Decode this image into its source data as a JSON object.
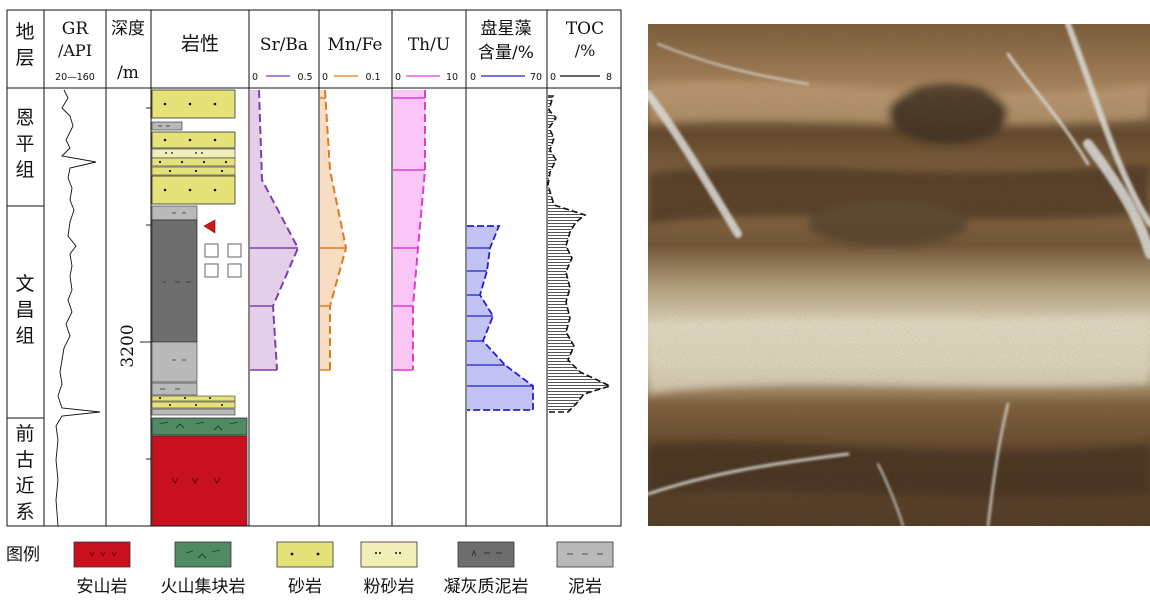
{
  "columns": {
    "stratum": "地层",
    "gr_title": "GR",
    "gr_unit": "/API",
    "gr_range": "20—160",
    "depth_title": "深度",
    "depth_unit": "/m",
    "lith_title": "岩性",
    "srba_title": "Sr/Ba",
    "srba_min": "0",
    "srba_max": "0.5",
    "mnfe_title": "Mn/Fe",
    "mnfe_min": "0",
    "mnfe_max": "0.1",
    "thu_title": "Th/U",
    "thu_min": "0",
    "thu_max": "10",
    "algae_title_1": "盘星藻",
    "algae_title_2": "含量/%",
    "algae_min": "0",
    "algae_max": "70",
    "toc_title": "TOC",
    "toc_unit": "/%",
    "toc_min": "0",
    "toc_max": "8"
  },
  "formations": [
    {
      "name": "恩平组",
      "chars": [
        "恩",
        "平",
        "组"
      ]
    },
    {
      "name": "文昌组",
      "chars": [
        "文",
        "昌",
        "组"
      ]
    },
    {
      "name": "前古近系",
      "chars": [
        "前",
        "古",
        "近",
        "系"
      ]
    }
  ],
  "depth_label": "3200",
  "legend": {
    "title": "图例",
    "items": [
      {
        "label": "安山岩",
        "color": "#c8101e"
      },
      {
        "label": "火山集块岩",
        "color": "#4f8a62"
      },
      {
        "label": "砂岩",
        "color": "#e6e27a"
      },
      {
        "label": "粉砂岩",
        "color": "#f1efb8"
      },
      {
        "label": "凝灰质泥岩",
        "color": "#6e6e6e"
      },
      {
        "label": "泥岩",
        "color": "#b9b9b9"
      }
    ]
  },
  "colors": {
    "srba": "#7d3fa8",
    "mnfe": "#e07b1a",
    "thu": "#e23ad8",
    "algae": "#2222cc",
    "toc": "#111111",
    "marker": "#d01818"
  },
  "chart_data": {
    "type": "line",
    "series": [
      {
        "name": "Sr/Ba",
        "values": [
          0.01,
          0.01,
          0.05,
          0.16,
          0.16,
          0.11,
          0.11
        ]
      },
      {
        "name": "Mn/Fe",
        "values": [
          0.005,
          0.005,
          0.025,
          0.046,
          0.025,
          0.025
        ]
      },
      {
        "name": "Th/U",
        "values": [
          3.5,
          3.5,
          2.8,
          2.4,
          2.0,
          2.0
        ]
      },
      {
        "name": "盘星藻含量/%",
        "values": [
          28,
          25,
          18,
          20,
          15,
          17,
          28,
          48,
          55,
          53
        ]
      },
      {
        "name": "TOC/%",
        "values": [
          0.3,
          0.5,
          0.8,
          0.4,
          2.5,
          3.7,
          1.5,
          2.8,
          3.5,
          2.2,
          3.0,
          4.5,
          3.2
        ]
      }
    ]
  }
}
